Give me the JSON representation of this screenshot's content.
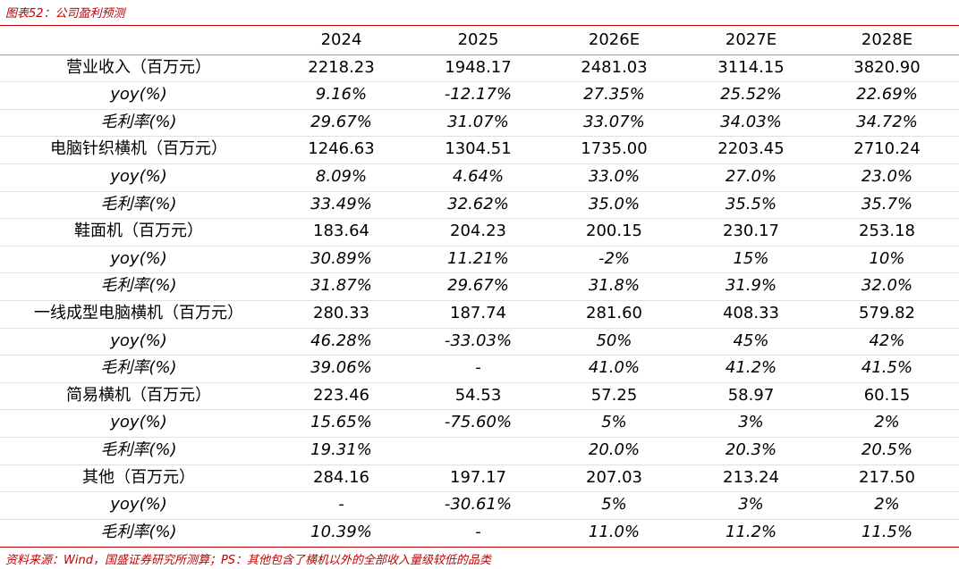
{
  "header": {
    "title": "图表52：公司盈利预测"
  },
  "table": {
    "columns": [
      "2024",
      "2025",
      "2026E",
      "2027E",
      "2028E"
    ],
    "rows": [
      [
        "营业收入（百万元）",
        "2218.23",
        "1948.17",
        "2481.03",
        "3114.15",
        "3820.90"
      ],
      [
        "yoy(%)",
        "9.16%",
        "-12.17%",
        "27.35%",
        "25.52%",
        "22.69%"
      ],
      [
        "毛利率(%)",
        "29.67%",
        "31.07%",
        "33.07%",
        "34.03%",
        "34.72%"
      ],
      [
        "电脑针织横机（百万元）",
        "1246.63",
        "1304.51",
        "1735.00",
        "2203.45",
        "2710.24"
      ],
      [
        "yoy(%)",
        "8.09%",
        "4.64%",
        "33.0%",
        "27.0%",
        "23.0%"
      ],
      [
        "毛利率(%)",
        "33.49%",
        "32.62%",
        "35.0%",
        "35.5%",
        "35.7%"
      ],
      [
        "鞋面机（百万元）",
        "183.64",
        "204.23",
        "200.15",
        "230.17",
        "253.18"
      ],
      [
        "yoy(%)",
        "30.89%",
        "11.21%",
        "-2%",
        "15%",
        "10%"
      ],
      [
        "毛利率(%)",
        "31.87%",
        "29.67%",
        "31.8%",
        "31.9%",
        "32.0%"
      ],
      [
        "一线成型电脑横机（百万元）",
        "280.33",
        "187.74",
        "281.60",
        "408.33",
        "579.82"
      ],
      [
        "yoy(%)",
        "46.28%",
        "-33.03%",
        "50%",
        "45%",
        "42%"
      ],
      [
        "毛利率(%)",
        "39.06%",
        "-",
        "41.0%",
        "41.2%",
        "41.5%"
      ],
      [
        "简易横机（百万元）",
        "223.46",
        "54.53",
        "57.25",
        "58.97",
        "60.15"
      ],
      [
        "yoy(%)",
        "15.65%",
        "-75.60%",
        "5%",
        "3%",
        "2%"
      ],
      [
        "毛利率(%)",
        "19.31%",
        null,
        "20.0%",
        "20.3%",
        "20.5%"
      ],
      [
        "其他（百万元）",
        "284.16",
        "197.17",
        "207.03",
        "213.24",
        "217.50"
      ],
      [
        "yoy(%)",
        "-",
        "-30.61%",
        "5%",
        "3%",
        "2%"
      ],
      [
        "毛利率(%)",
        "10.39%",
        "-",
        "11.0%",
        "11.2%",
        "11.5%"
      ]
    ]
  },
  "footer": {
    "source": "资料来源：Wind，国盛证券研究所测算；PS：其他包含了横机以外的全部收入量级较低的品类"
  }
}
